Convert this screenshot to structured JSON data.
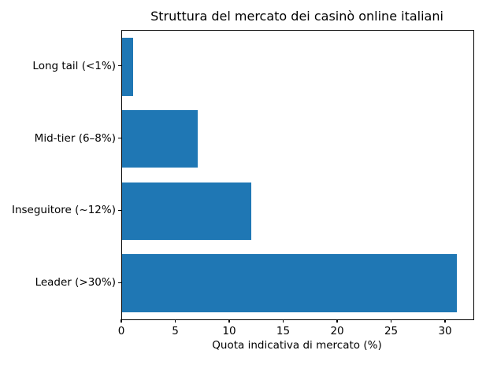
{
  "chart_data": {
    "type": "bar",
    "orientation": "horizontal",
    "title": "Struttura del mercato dei casinò online italiani",
    "xlabel": "Quota indicativa di mercato (%)",
    "ylabel": "",
    "categories": [
      "Long tail (<1%)",
      "Mid-tier (6–8%)",
      "Inseguitore (~12%)",
      "Leader (>30%)"
    ],
    "values": [
      1,
      7,
      12,
      31
    ],
    "category_order": "top_to_bottom",
    "xticks": [
      0,
      5,
      10,
      15,
      20,
      25,
      30
    ],
    "xlim": [
      0,
      32.55
    ],
    "grid": false,
    "legend": null,
    "bar_color": "#1f77b4",
    "text_color": "#000000",
    "spine_color": "#000000",
    "background_color": "#ffffff"
  }
}
